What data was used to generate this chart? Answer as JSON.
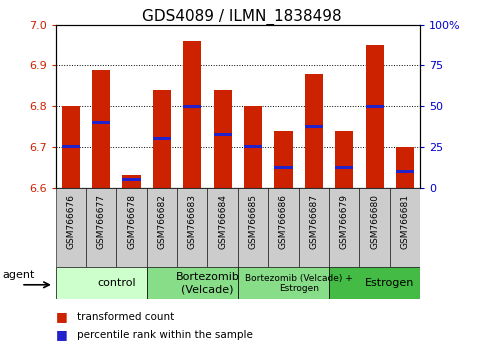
{
  "title": "GDS4089 / ILMN_1838498",
  "samples": [
    "GSM766676",
    "GSM766677",
    "GSM766678",
    "GSM766682",
    "GSM766683",
    "GSM766684",
    "GSM766685",
    "GSM766686",
    "GSM766687",
    "GSM766679",
    "GSM766680",
    "GSM766681"
  ],
  "bar_values": [
    6.8,
    6.89,
    6.63,
    6.84,
    6.96,
    6.84,
    6.8,
    6.74,
    6.88,
    6.74,
    6.95,
    6.7
  ],
  "percentile_values": [
    6.7,
    6.76,
    6.62,
    6.72,
    6.8,
    6.73,
    6.7,
    6.65,
    6.75,
    6.65,
    6.8,
    6.64
  ],
  "ylim_left": [
    6.6,
    7.0
  ],
  "ylim_right": [
    0,
    100
  ],
  "yticks_left": [
    6.6,
    6.7,
    6.8,
    6.9,
    7.0
  ],
  "yticks_right": [
    0,
    25,
    50,
    75,
    100
  ],
  "ytick_labels_right": [
    "0",
    "25",
    "50",
    "75",
    "100%"
  ],
  "bar_color": "#cc2200",
  "percentile_color": "#2222cc",
  "bar_width": 0.6,
  "group_labels": [
    "control",
    "Bortezomib\n(Velcade)",
    "Bortezomib (Velcade) +\nEstrogen",
    "Estrogen"
  ],
  "group_starts": [
    0,
    3,
    6,
    9
  ],
  "group_ends": [
    3,
    6,
    9,
    12
  ],
  "group_colors": [
    "#ccffcc",
    "#88dd88",
    "#88dd88",
    "#44bb44"
  ],
  "agent_label": "agent",
  "legend_bar_label": "transformed count",
  "legend_pct_label": "percentile rank within the sample",
  "bg_color": "#ffffff",
  "tick_label_color_left": "#cc2200",
  "tick_label_color_right": "#0000cc",
  "title_fontsize": 11,
  "xtick_bg_color": "#cccccc"
}
